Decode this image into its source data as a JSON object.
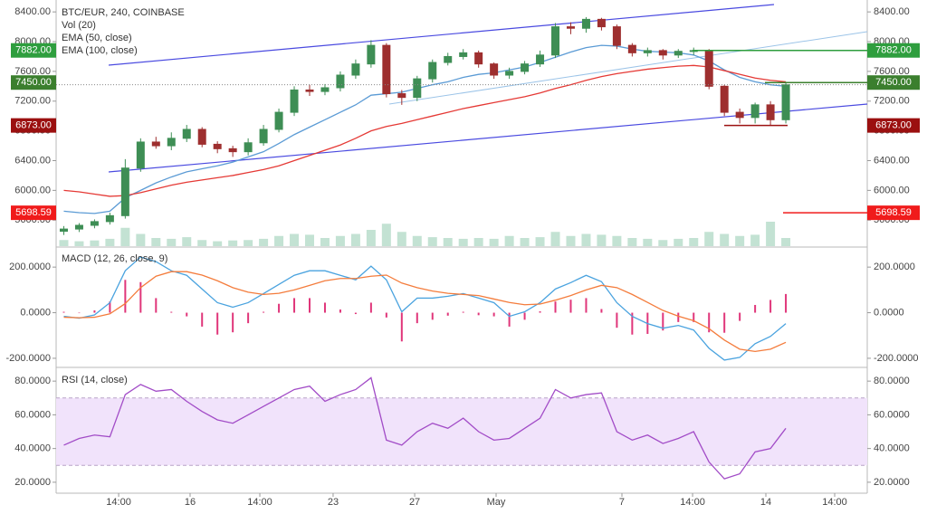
{
  "chart_data": [
    {
      "type": "candlestick",
      "title": "BTC/EUR, 240, COINBASE",
      "open": [
        5450,
        5480,
        5530,
        5580,
        5660,
        6300,
        6650,
        6600,
        6700,
        6820,
        6620,
        6560,
        6520,
        6640,
        6820,
        7050,
        7350,
        7330,
        7380,
        7550,
        7700,
        7950,
        7300,
        7250,
        7500,
        7720,
        7800,
        7850,
        7700,
        7550,
        7600,
        7700,
        7820,
        8200,
        8180,
        8300,
        8200,
        7950,
        7850,
        7880,
        7820,
        7870,
        7880,
        7400,
        7050,
        6980,
        7150,
        6950
      ],
      "high": [
        5520,
        5560,
        5610,
        5700,
        6420,
        6700,
        6720,
        6780,
        6880,
        6850,
        6660,
        6600,
        6700,
        6880,
        7100,
        7400,
        7420,
        7430,
        7600,
        7760,
        8020,
        7980,
        7350,
        7540,
        7760,
        7850,
        7900,
        7880,
        7720,
        7650,
        7740,
        7880,
        8250,
        8260,
        8330,
        8320,
        8230,
        7980,
        7920,
        7900,
        7900,
        7920,
        7900,
        7420,
        7100,
        7180,
        7200,
        7460
      ],
      "low": [
        5400,
        5440,
        5490,
        5540,
        5620,
        6250,
        6560,
        6540,
        6650,
        6580,
        6500,
        6450,
        6470,
        6600,
        6780,
        7000,
        7270,
        7280,
        7330,
        7500,
        7650,
        7250,
        7150,
        7200,
        7450,
        7680,
        7760,
        7650,
        7500,
        7500,
        7560,
        7660,
        7780,
        8100,
        8120,
        8150,
        7900,
        7800,
        7800,
        7760,
        7780,
        7820,
        7360,
        7000,
        6900,
        6900,
        6880,
        6900
      ],
      "close": [
        5480,
        5530,
        5580,
        5660,
        6300,
        6650,
        6600,
        6700,
        6820,
        6620,
        6560,
        6520,
        6640,
        6820,
        7050,
        7350,
        7330,
        7380,
        7550,
        7700,
        7950,
        7300,
        7250,
        7500,
        7720,
        7800,
        7850,
        7700,
        7550,
        7600,
        7700,
        7820,
        8200,
        8180,
        8300,
        8200,
        7950,
        7850,
        7880,
        7820,
        7870,
        7880,
        7400,
        7050,
        6980,
        7150,
        6950,
        7420
      ],
      "up_color": "#3e8e55",
      "down_color": "#9e2f2f",
      "volume": {
        "name": "Vol (20)",
        "color": "#a9d6c0",
        "values": [
          15,
          12,
          14,
          18,
          45,
          30,
          20,
          18,
          22,
          15,
          12,
          14,
          15,
          18,
          25,
          30,
          28,
          20,
          25,
          30,
          40,
          55,
          35,
          25,
          22,
          20,
          18,
          20,
          18,
          25,
          20,
          22,
          35,
          25,
          30,
          28,
          25,
          20,
          18,
          15,
          18,
          20,
          35,
          30,
          25,
          28,
          60,
          20
        ]
      },
      "vlim": [
        0,
        100
      ],
      "series": [
        {
          "name": "EMA (50, close)",
          "color": "#5b9bd5",
          "values": [
            5720,
            5700,
            5690,
            5720,
            5900,
            6000,
            6100,
            6180,
            6250,
            6290,
            6330,
            6380,
            6450,
            6520,
            6630,
            6750,
            6850,
            6950,
            7050,
            7150,
            7280,
            7300,
            7320,
            7370,
            7420,
            7460,
            7520,
            7560,
            7580,
            7620,
            7660,
            7720,
            7790,
            7860,
            7920,
            7950,
            7940,
            7900,
            7870,
            7860,
            7850,
            7820,
            7740,
            7620,
            7520,
            7460,
            7420,
            7400
          ]
        },
        {
          "name": "EMA (100, close)",
          "color": "#e53935",
          "values": [
            6000,
            5980,
            5950,
            5920,
            5930,
            5970,
            6020,
            6070,
            6110,
            6140,
            6170,
            6200,
            6240,
            6280,
            6330,
            6400,
            6470,
            6540,
            6610,
            6700,
            6800,
            6860,
            6900,
            6950,
            7000,
            7050,
            7100,
            7140,
            7180,
            7220,
            7260,
            7310,
            7370,
            7420,
            7480,
            7530,
            7570,
            7600,
            7630,
            7650,
            7670,
            7680,
            7660,
            7610,
            7560,
            7510,
            7480,
            7460
          ]
        }
      ],
      "levels": [
        {
          "value": 7882,
          "label": "7882.00",
          "color": "#2e9e3e"
        },
        {
          "value": 7450,
          "label": "7450.00",
          "color": "#3b7f2e"
        },
        {
          "value": 6873,
          "label": "6873.00",
          "color": "#9b1010"
        },
        {
          "value": 5698.59,
          "label": "5698.59",
          "color": "#f01b1b"
        }
      ],
      "xlim": [
        -0.5,
        52.3
      ],
      "ylim": [
        5250,
        8560
      ],
      "yticks": [
        {
          "value": 8400,
          "label": "8400.00"
        },
        {
          "value": 8000,
          "label": "8000.00"
        },
        {
          "value": 7600,
          "label": "7600.00"
        },
        {
          "value": 7200,
          "label": "7200.00"
        },
        {
          "value": 6800,
          "label": "6800.00"
        },
        {
          "value": 6400,
          "label": "6400.00"
        },
        {
          "value": 6000,
          "label": "6000.00"
        },
        {
          "value": 5600,
          "label": "5600.00"
        }
      ]
    },
    {
      "type": "line",
      "title": "MACD (12, 26, close, 9)",
      "series": [
        {
          "kind": "histogram",
          "color": "#e0367a",
          "values": [
            4,
            -2,
            10,
            49,
            144,
            134,
            64,
            4,
            -16,
            -61,
            -96,
            -86,
            -46,
            4,
            39,
            64,
            64,
            44,
            14,
            -6,
            44,
            -21,
            -126,
            -46,
            -31,
            -13,
            4,
            -11,
            -16,
            -61,
            -31,
            6,
            49,
            57,
            64,
            16,
            -66,
            -96,
            -93,
            -78,
            -41,
            -41,
            -86,
            -88,
            -36,
            34,
            56,
            82
          ]
        },
        {
          "kind": "line",
          "color": "#4aa3df",
          "values": [
            -16,
            -24,
            -10,
            44,
            184,
            244,
            224,
            184,
            164,
            104,
            44,
            24,
            44,
            84,
            124,
            164,
            184,
            184,
            164,
            144,
            204,
            144,
            4,
            64,
            64,
            72,
            84,
            64,
            44,
            -16,
            4,
            44,
            104,
            132,
            164,
            136,
            44,
            -16,
            -48,
            -68,
            -56,
            -76,
            -156,
            -208,
            -196,
            -136,
            -104,
            -48
          ]
        },
        {
          "kind": "line",
          "color": "#f47c3c",
          "values": [
            -20,
            -22,
            -20,
            -5,
            40,
            110,
            160,
            180,
            180,
            165,
            140,
            110,
            90,
            80,
            85,
            100,
            120,
            140,
            150,
            150,
            160,
            165,
            130,
            110,
            95,
            85,
            80,
            75,
            60,
            45,
            35,
            38,
            55,
            75,
            100,
            120,
            110,
            80,
            45,
            10,
            -15,
            -35,
            -70,
            -120,
            -160,
            -170,
            -160,
            -130
          ]
        }
      ],
      "xlim": [
        -0.5,
        52.3
      ],
      "ylim": [
        -236,
        284
      ],
      "yticks": [
        {
          "value": 200,
          "label": "200.0000"
        },
        {
          "value": 0,
          "label": "0.0000"
        },
        {
          "value": -200,
          "label": "-200.0000"
        }
      ]
    },
    {
      "type": "line",
      "title": "RSI (14, close)",
      "series": [
        {
          "kind": "line",
          "color": "#a24cc7",
          "values": [
            42,
            46,
            48,
            47,
            72,
            78,
            74,
            75,
            68,
            62,
            57,
            55,
            60,
            65,
            70,
            75,
            77,
            68,
            72,
            75,
            82,
            45,
            42,
            50,
            55,
            52,
            58,
            50,
            45,
            46,
            52,
            58,
            75,
            70,
            72,
            73,
            50,
            45,
            48,
            43,
            46,
            50,
            32,
            22,
            25,
            38,
            40,
            52
          ]
        }
      ],
      "band": [
        30,
        70
      ],
      "xlim": [
        -0.5,
        52.3
      ],
      "ylim": [
        13.5,
        87.6
      ],
      "yticks": [
        {
          "value": 80,
          "label": "80.0000"
        },
        {
          "value": 60,
          "label": "60.0000"
        },
        {
          "value": 40,
          "label": "40.0000"
        },
        {
          "value": 20,
          "label": "20.0000"
        }
      ],
      "xticks": [
        {
          "value": 3.57,
          "label": "14:00"
        },
        {
          "value": 8.22,
          "label": "16"
        },
        {
          "value": 12.76,
          "label": "14:00"
        },
        {
          "value": 17.53,
          "label": "23"
        },
        {
          "value": 22.84,
          "label": "27"
        },
        {
          "value": 28.14,
          "label": "May"
        },
        {
          "value": 36.33,
          "label": "7"
        },
        {
          "value": 40.93,
          "label": "14:00"
        },
        {
          "value": 45.7,
          "label": "14"
        },
        {
          "value": 50.18,
          "label": "14:00"
        }
      ]
    }
  ]
}
